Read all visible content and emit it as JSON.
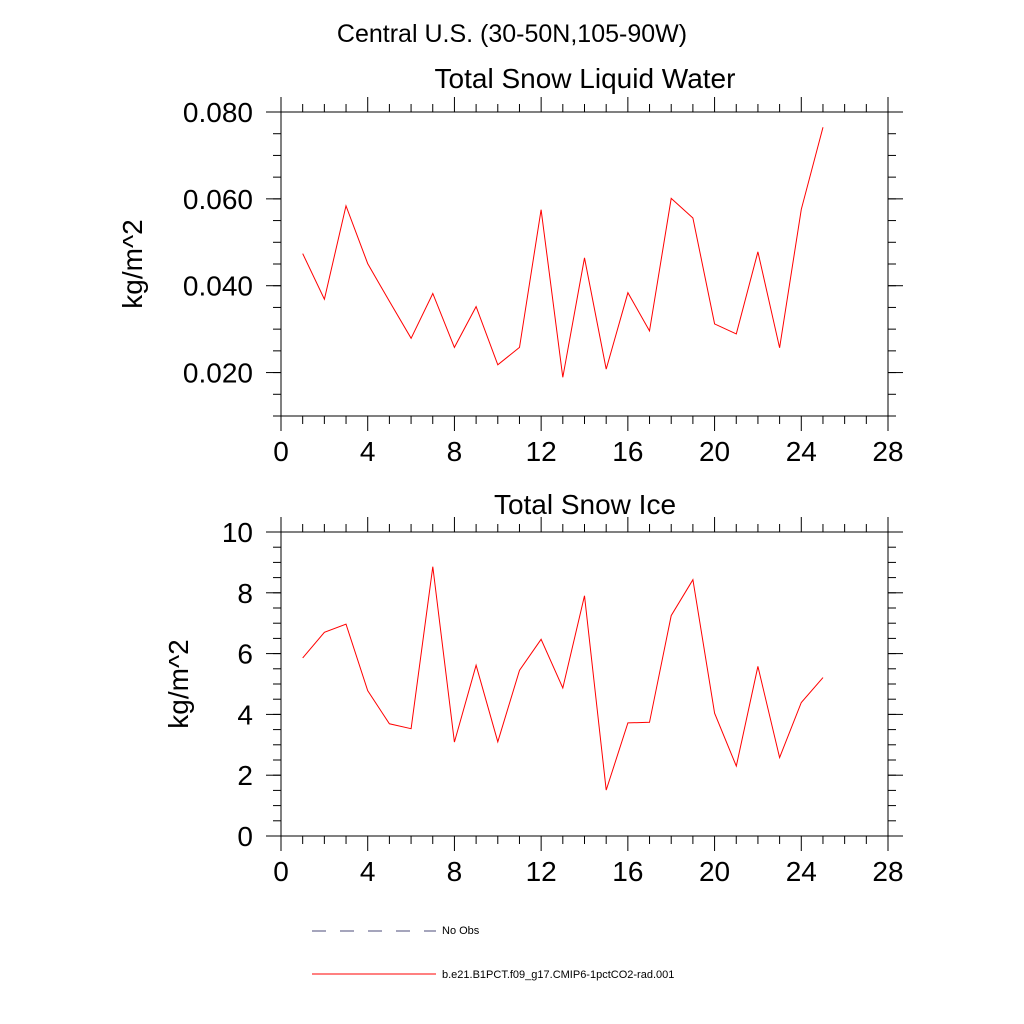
{
  "figure": {
    "region_title": "Central U.S. (30-50N,105-90W)"
  },
  "legend": {
    "items": [
      {
        "label": "No Obs",
        "color": "#4b4b7a",
        "style": "dashed"
      },
      {
        "label": "b.e21.B1PCT.f09_g17.CMIP6-1pctCO2-rad.001",
        "color": "#ff0000",
        "style": "solid"
      }
    ]
  },
  "chart_data": [
    {
      "type": "line",
      "title": "Total Snow Liquid Water",
      "xlabel": "",
      "ylabel": "kg/m^2",
      "xlim": [
        0,
        28
      ],
      "ylim": [
        0.01,
        0.08
      ],
      "xticks": [
        0,
        4,
        8,
        12,
        16,
        20,
        24,
        28
      ],
      "xtick_labels": [
        "0",
        "4",
        "8",
        "12",
        "16",
        "20",
        "24",
        "28"
      ],
      "yticks": [
        0.02,
        0.04,
        0.06,
        0.08
      ],
      "ytick_labels": [
        "0.020",
        "0.040",
        "0.060",
        "0.080"
      ],
      "yminor_step": 0.005,
      "grid": false,
      "series": [
        {
          "name": "b.e21.B1PCT.f09_g17.CMIP6-1pctCO2-rad.001",
          "color": "#ff0000",
          "x": [
            1,
            2,
            3,
            4,
            5,
            6,
            7,
            8,
            9,
            10,
            11,
            12,
            13,
            14,
            15,
            16,
            17,
            18,
            19,
            20,
            21,
            22,
            23,
            24,
            25
          ],
          "y": [
            0.0474,
            0.0369,
            0.0584,
            0.0451,
            0.0364,
            0.0279,
            0.0382,
            0.0258,
            0.0352,
            0.0218,
            0.0258,
            0.0575,
            0.0189,
            0.0464,
            0.0208,
            0.0384,
            0.0296,
            0.0601,
            0.0556,
            0.0312,
            0.0289,
            0.0478,
            0.0257,
            0.0576,
            0.0765
          ]
        }
      ]
    },
    {
      "type": "line",
      "title": "Total Snow Ice",
      "xlabel": "",
      "ylabel": "kg/m^2",
      "xlim": [
        0,
        28
      ],
      "ylim": [
        0,
        10
      ],
      "xticks": [
        0,
        4,
        8,
        12,
        16,
        20,
        24,
        28
      ],
      "xtick_labels": [
        "0",
        "4",
        "8",
        "12",
        "16",
        "20",
        "24",
        "28"
      ],
      "yticks": [
        0,
        2,
        4,
        6,
        8,
        10
      ],
      "ytick_labels": [
        "0",
        "2",
        "4",
        "6",
        "8",
        "10"
      ],
      "yminor_step": 0.5,
      "grid": false,
      "series": [
        {
          "name": "b.e21.B1PCT.f09_g17.CMIP6-1pctCO2-rad.001",
          "color": "#ff0000",
          "x": [
            1,
            2,
            3,
            4,
            5,
            6,
            7,
            8,
            9,
            10,
            11,
            12,
            13,
            14,
            15,
            16,
            17,
            18,
            19,
            20,
            21,
            22,
            23,
            24,
            25
          ],
          "y": [
            5.86,
            6.7,
            6.97,
            4.78,
            3.69,
            3.53,
            8.86,
            3.09,
            5.62,
            3.1,
            5.45,
            6.47,
            4.87,
            7.9,
            1.51,
            3.72,
            3.74,
            7.25,
            8.43,
            4.04,
            2.3,
            5.58,
            2.58,
            4.39,
            5.21
          ]
        }
      ]
    }
  ]
}
